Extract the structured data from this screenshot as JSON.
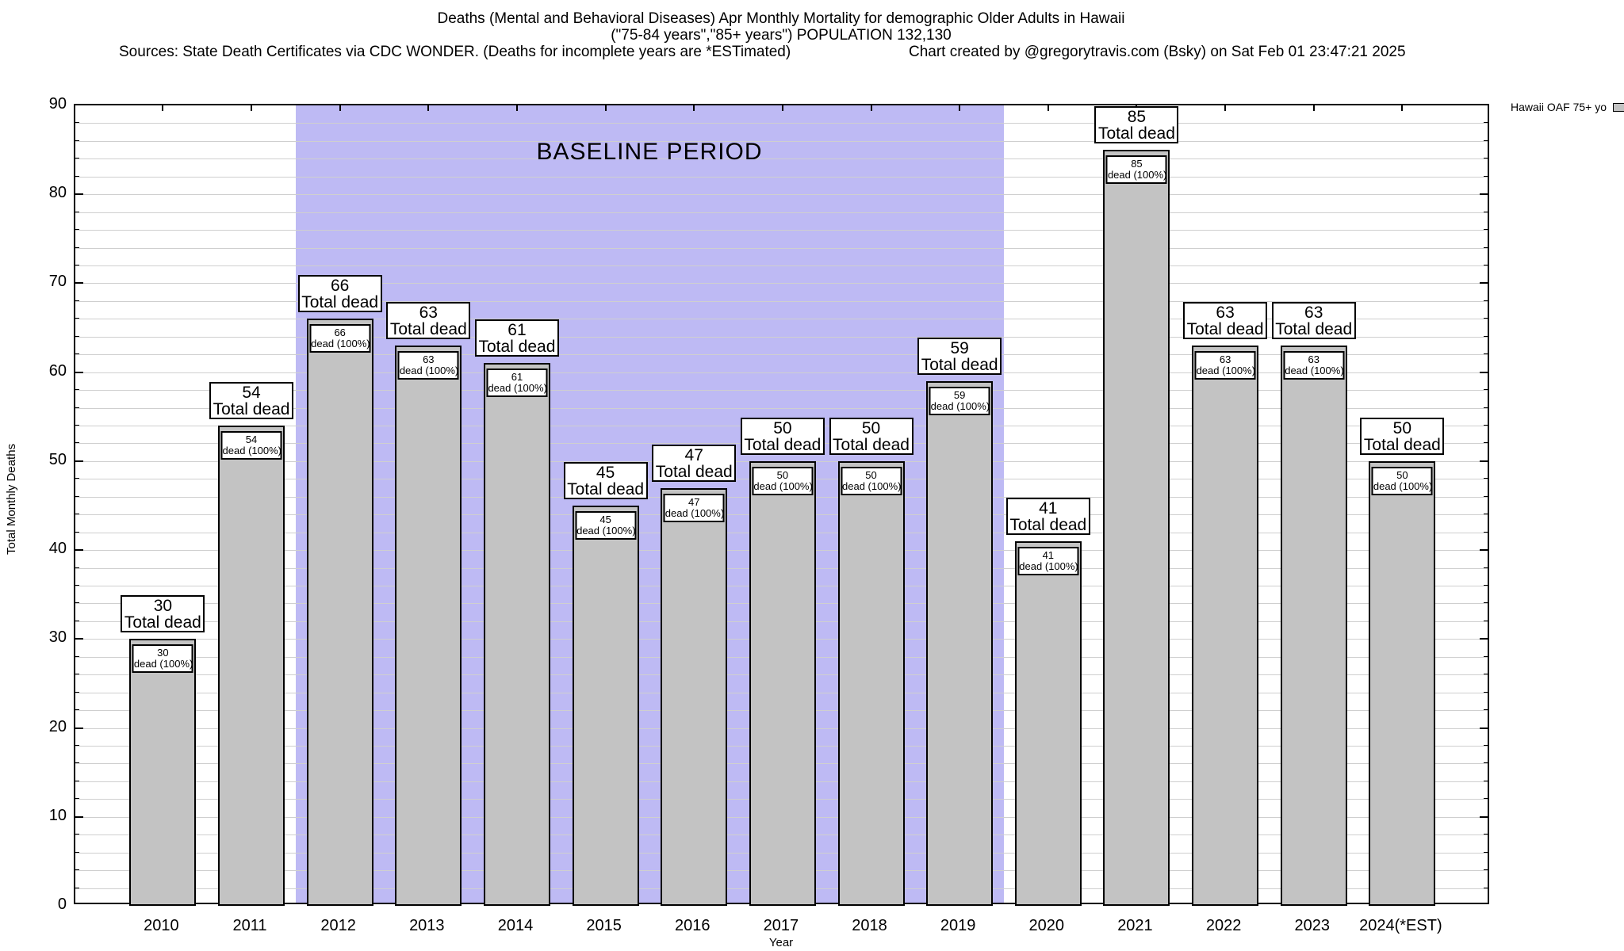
{
  "header": {
    "title_line1": "Deaths (Mental and Behavioral Diseases) Apr Monthly Mortality for demographic Older Adults in Hawaii",
    "title_line2": "(\"75-84 years\",\"85+ years\") POPULATION 132,130",
    "source_note": "Sources: State Death Certificates via CDC WONDER. (Deaths for incomplete years are *ESTimated)",
    "credit": "Chart created by @gregorytravis.com (Bsky) on Sat Feb 01 23:47:21 2025"
  },
  "legend": {
    "label": "Hawaii OAF 75+ yo",
    "swatch_color": "#c3c3c3"
  },
  "chart_data": {
    "type": "bar",
    "title": "Deaths (Mental and Behavioral Diseases) Apr Monthly Mortality for demographic Older Adults in Hawaii (\"75-84 years\",\"85+ years\") POPULATION 132,130",
    "xlabel": "Year",
    "ylabel": "Total Monthly Deaths",
    "ylim": [
      0,
      90
    ],
    "ytick_step": 10,
    "minor_grid_step": 2,
    "grid": true,
    "legend_position": "top-right-outside",
    "categories": [
      "2010",
      "2011",
      "2012",
      "2013",
      "2014",
      "2015",
      "2016",
      "2017",
      "2018",
      "2019",
      "2020",
      "2021",
      "2022",
      "2023",
      "2024(*EST)"
    ],
    "values": [
      30,
      54,
      66,
      63,
      61,
      45,
      47,
      50,
      50,
      59,
      41,
      85,
      63,
      63,
      50
    ],
    "total_label_suffix": "Total dead",
    "inner_label_suffix": "dead (100%)",
    "baseline_region": {
      "label": "BASELINE PERIOD",
      "from_category": "2012",
      "to_category": "2019"
    },
    "colors": {
      "bar_fill": "#c3c3c3",
      "bar_border": "#000000",
      "baseline_fill": "#bebaf4",
      "grid": "#cfcfcf",
      "axis": "#000000"
    }
  }
}
